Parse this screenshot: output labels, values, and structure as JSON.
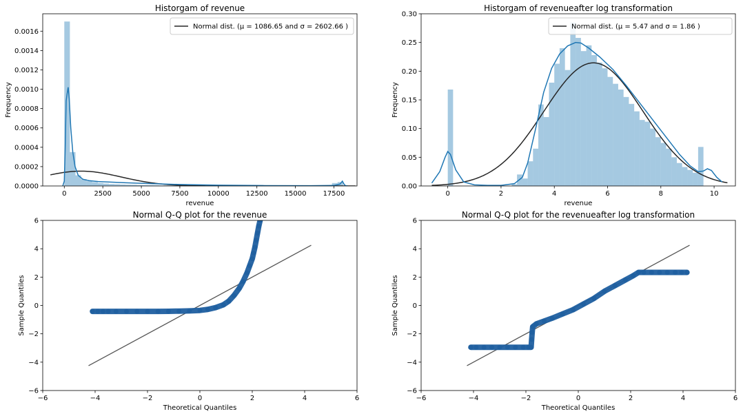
{
  "chart_data": [
    {
      "type": "histogram",
      "title": "Historgam of revenue",
      "xlabel": "revenue",
      "ylabel": "Frequency",
      "xlim": [
        -1400,
        19000
      ],
      "ylim": [
        0,
        0.00178
      ],
      "xticks": [
        0,
        2500,
        5000,
        7500,
        10000,
        12500,
        15000,
        17500
      ],
      "xtick_labels": [
        "0",
        "2500",
        "5000",
        "7500",
        "10000",
        "12500",
        "15000",
        "17500"
      ],
      "yticks": [
        0,
        0.0002,
        0.0004,
        0.0006,
        0.0008,
        0.001,
        0.0012,
        0.0014,
        0.0016
      ],
      "ytick_labels": [
        "0.0000",
        "0.0002",
        "0.0004",
        "0.0006",
        "0.0008",
        "0.0010",
        "0.0012",
        "0.0014",
        "0.0016"
      ],
      "bins": {
        "start": 0,
        "width": 362,
        "heights": [
          0.0017,
          0.00035,
          0.00011,
          7e-05,
          5e-05,
          4e-05,
          3e-05,
          2.5e-05,
          2e-05,
          1.8e-05,
          1.5e-05,
          1.3e-05,
          1.2e-05,
          1e-05,
          9e-06,
          8e-06,
          7e-06,
          6e-06,
          5e-06,
          5e-06,
          4e-06,
          4e-06,
          3e-06,
          3e-06,
          3e-06,
          2e-06,
          2e-06,
          2e-06,
          2e-06,
          2e-06,
          1e-06,
          1e-06,
          1e-06,
          1e-06,
          1e-06,
          1e-06,
          1e-06,
          1e-06,
          1e-06,
          1e-06,
          1e-06,
          1e-06,
          1e-06,
          1e-06,
          1e-06,
          1e-06,
          1e-06,
          1e-06,
          3e-05,
          4e-05
        ]
      },
      "kde": {
        "x": [
          -100,
          0,
          60,
          120,
          180,
          250,
          320,
          420,
          550,
          700,
          900,
          1200,
          1600,
          2200,
          3000,
          4000,
          5500,
          7500,
          10000,
          13000,
          16000,
          17500,
          17900,
          18050,
          18150,
          18250,
          18400
        ],
        "y": [
          0,
          5e-05,
          0.0004,
          0.00088,
          0.00095,
          0.00102,
          0.0009,
          0.0006,
          0.00035,
          0.0002,
          0.00011,
          7e-05,
          5.5e-05,
          4.5e-05,
          4e-05,
          3.3e-05,
          2.5e-05,
          1.5e-05,
          8e-06,
          4e-06,
          3e-06,
          5e-06,
          2e-05,
          5e-05,
          2e-05,
          3e-06,
          0
        ]
      },
      "normal_fit": {
        "mu": 1086.65,
        "sigma": 2602.66,
        "x_range": [
          -900,
          18900
        ]
      },
      "legend": {
        "label": "Normal dist. (μ =  1086.65 and σ =  2602.66 )",
        "position": "upper right"
      },
      "colors": {
        "hist": "#1f77b4",
        "kde": "#1f77b4",
        "fit": "#262626"
      }
    },
    {
      "type": "histogram",
      "title": "Historgam of revenueafter log transformation",
      "xlabel": "revenue",
      "ylabel": "Frequency",
      "xlim": [
        -1.0,
        10.8
      ],
      "ylim": [
        0,
        0.3
      ],
      "xticks": [
        0,
        2,
        4,
        6,
        8,
        10
      ],
      "xtick_labels": [
        "0",
        "2",
        "4",
        "6",
        "8",
        "10"
      ],
      "yticks": [
        0,
        0.05,
        0.1,
        0.15,
        0.2,
        0.25,
        0.3
      ],
      "ytick_labels": [
        "0.00",
        "0.05",
        "0.10",
        "0.15",
        "0.20",
        "0.25",
        "0.30"
      ],
      "bins": {
        "start": -0.2,
        "width": 0.2,
        "heights": [
          0,
          0.168,
          0,
          0,
          0,
          0,
          0,
          0,
          0,
          0,
          0,
          0,
          0,
          0.003,
          0.02,
          0.013,
          0.043,
          0.065,
          0.142,
          0.12,
          0.18,
          0.213,
          0.24,
          0.202,
          0.285,
          0.258,
          0.235,
          0.245,
          0.228,
          0.215,
          0.205,
          0.19,
          0.178,
          0.168,
          0.155,
          0.143,
          0.13,
          0.115,
          0.112,
          0.1,
          0.085,
          0.075,
          0.065,
          0.05,
          0.04,
          0.033,
          0.028,
          0.023,
          0.068,
          0
        ]
      },
      "kde": {
        "x": [
          -0.6,
          -0.3,
          -0.1,
          0,
          0.1,
          0.3,
          0.6,
          1.0,
          1.5,
          2.0,
          2.5,
          2.8,
          3.0,
          3.3,
          3.6,
          3.9,
          4.2,
          4.5,
          4.8,
          5.0,
          5.3,
          5.7,
          6.2,
          6.7,
          7.2,
          7.7,
          8.2,
          8.7,
          9.1,
          9.4,
          9.6,
          9.75,
          9.9,
          10.1,
          10.3
        ],
        "y": [
          0.005,
          0.025,
          0.05,
          0.06,
          0.055,
          0.028,
          0.007,
          0.002,
          0.001,
          0.001,
          0.004,
          0.015,
          0.04,
          0.1,
          0.163,
          0.205,
          0.23,
          0.244,
          0.25,
          0.249,
          0.24,
          0.225,
          0.203,
          0.175,
          0.145,
          0.115,
          0.085,
          0.055,
          0.035,
          0.025,
          0.026,
          0.03,
          0.027,
          0.015,
          0.007
        ]
      },
      "normal_fit": {
        "mu": 5.47,
        "sigma": 1.86,
        "x_range": [
          -0.6,
          10.5
        ]
      },
      "legend": {
        "label": "Normal dist. (μ =  5.47 and σ =  1.86 )",
        "position": "upper right"
      },
      "colors": {
        "hist": "#1f77b4",
        "kde": "#1f77b4",
        "fit": "#262626"
      }
    },
    {
      "type": "scatter",
      "title": "Normal Q-Q plot for the revenue",
      "xlabel": "Theoretical Quantiles",
      "ylabel": "Sample Quantiles",
      "xlim": [
        -6,
        6
      ],
      "ylim": [
        -6,
        6
      ],
      "xticks": [
        -6,
        -4,
        -2,
        0,
        2,
        4,
        6
      ],
      "xtick_labels": [
        "−6",
        "−4",
        "−2",
        "0",
        "2",
        "4",
        "6"
      ],
      "yticks": [
        -6,
        -4,
        -2,
        0,
        2,
        4,
        6
      ],
      "ytick_labels": [
        "−6",
        "−4",
        "−2",
        "0",
        "2",
        "4",
        "6"
      ],
      "points": {
        "x": [
          -4.1,
          -3.9,
          -3.7,
          -3.5,
          -3.2,
          -2.8,
          -2.4,
          -2.0,
          -1.6,
          -1.2,
          -0.8,
          -0.4,
          0.0,
          0.3,
          0.6,
          0.9,
          1.1,
          1.3,
          1.5,
          1.65,
          1.8,
          1.9,
          2.0,
          2.05,
          2.1,
          2.15,
          2.2,
          2.25,
          2.3
        ],
        "y": [
          -0.42,
          -0.42,
          -0.42,
          -0.42,
          -0.42,
          -0.42,
          -0.42,
          -0.42,
          -0.42,
          -0.41,
          -0.4,
          -0.38,
          -0.35,
          -0.28,
          -0.15,
          0.05,
          0.3,
          0.7,
          1.2,
          1.7,
          2.3,
          2.8,
          3.3,
          3.7,
          4.1,
          4.6,
          5.1,
          5.6,
          6.0
        ]
      },
      "line": {
        "x": [
          -4.25,
          4.25
        ],
        "y": [
          -4.25,
          4.25
        ]
      },
      "colors": {
        "points": "#1f5fa0",
        "line": "#555555"
      }
    },
    {
      "type": "scatter",
      "title": "Normal Q-Q plot for the revenueafter log transformation",
      "xlabel": "Theoretical Quantiles",
      "ylabel": "Sample Quantiles",
      "xlim": [
        -6,
        6
      ],
      "ylim": [
        -6,
        6
      ],
      "xticks": [
        -6,
        -4,
        -2,
        0,
        2,
        4,
        6
      ],
      "xtick_labels": [
        "−6",
        "−4",
        "−2",
        "0",
        "2",
        "4",
        "6"
      ],
      "yticks": [
        -6,
        -4,
        -2,
        0,
        2,
        4,
        6
      ],
      "ytick_labels": [
        "−6",
        "−4",
        "−2",
        "0",
        "2",
        "4",
        "6"
      ],
      "points": {
        "x": [
          -4.1,
          -3.9,
          -3.6,
          -3.3,
          -3.0,
          -2.7,
          -2.4,
          -2.1,
          -1.9,
          -1.8,
          -1.78,
          -1.76,
          -1.74,
          -1.6,
          -1.3,
          -1.0,
          -0.6,
          -0.2,
          0.2,
          0.6,
          1.0,
          1.4,
          1.8,
          2.1,
          2.3,
          2.5,
          2.8,
          3.1,
          3.4,
          3.7,
          3.95,
          4.15
        ],
        "y": [
          -2.95,
          -2.95,
          -2.95,
          -2.95,
          -2.95,
          -2.95,
          -2.95,
          -2.95,
          -2.95,
          -2.95,
          -2.4,
          -1.9,
          -1.5,
          -1.3,
          -1.1,
          -0.9,
          -0.6,
          -0.3,
          0.1,
          0.5,
          1.0,
          1.4,
          1.8,
          2.1,
          2.33,
          2.33,
          2.33,
          2.33,
          2.33,
          2.33,
          2.33,
          2.33
        ]
      },
      "line": {
        "x": [
          -4.25,
          4.25
        ],
        "y": [
          -4.25,
          4.25
        ]
      },
      "colors": {
        "points": "#1f5fa0",
        "line": "#555555"
      }
    }
  ]
}
